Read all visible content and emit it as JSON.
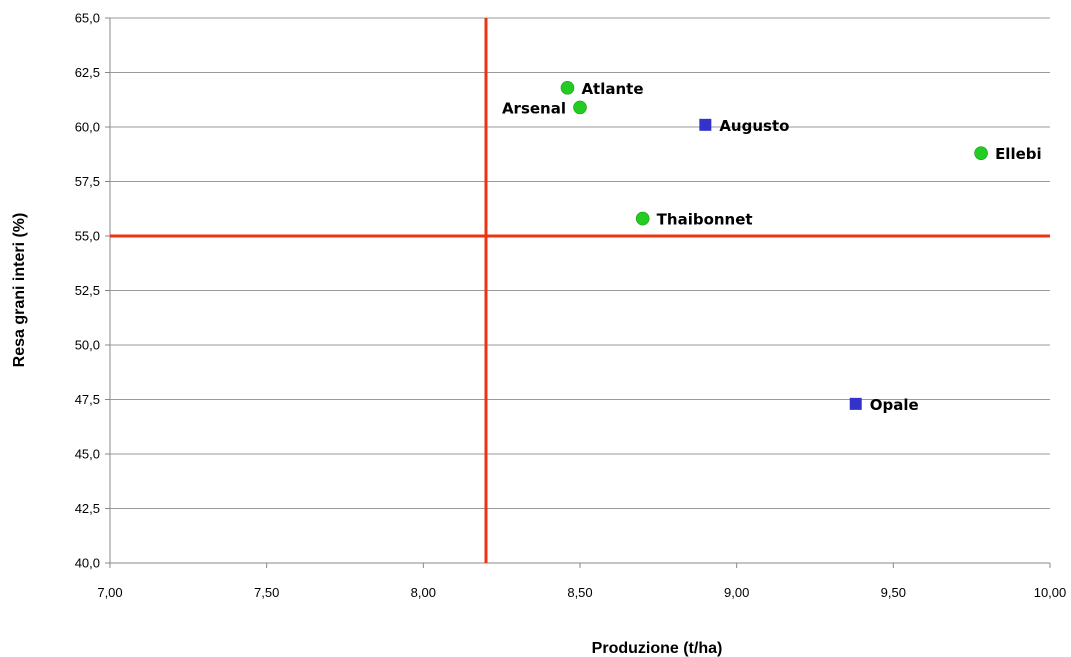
{
  "chart_data": {
    "type": "scatter",
    "title": "",
    "xlabel": "Produzione (t/ha)",
    "ylabel": "Resa grani interi (%)",
    "xlim": [
      7.0,
      10.0
    ],
    "ylim": [
      40.0,
      65.0
    ],
    "x_ticks": [
      "7,00",
      "7,50",
      "8,00",
      "8,50",
      "9,00",
      "9,50",
      "10,00"
    ],
    "y_ticks": [
      "40,0",
      "42,5",
      "45,0",
      "47,5",
      "50,0",
      "52,5",
      "55,0",
      "57,5",
      "60,0",
      "62,5",
      "65,0"
    ],
    "grid": "horizontal",
    "reference_lines": [
      {
        "axis": "x",
        "value": 8.2,
        "color": "#ee3311"
      },
      {
        "axis": "y",
        "value": 55.0,
        "color": "#ee3311"
      }
    ],
    "points": [
      {
        "label": "Atlante",
        "x": 8.46,
        "y": 61.8,
        "marker": "circle",
        "color": "#22cc22",
        "label_side": "right"
      },
      {
        "label": "Arsenal",
        "x": 8.5,
        "y": 60.9,
        "marker": "circle",
        "color": "#22cc22",
        "label_side": "left"
      },
      {
        "label": "Augusto",
        "x": 8.9,
        "y": 60.1,
        "marker": "square",
        "color": "#3333cc",
        "label_side": "right"
      },
      {
        "label": "Ellebi",
        "x": 9.78,
        "y": 58.8,
        "marker": "circle",
        "color": "#22cc22",
        "label_side": "right"
      },
      {
        "label": "Thaibonnet",
        "x": 8.7,
        "y": 55.8,
        "marker": "circle",
        "color": "#22cc22",
        "label_side": "right"
      },
      {
        "label": "Opale",
        "x": 9.38,
        "y": 47.3,
        "marker": "square",
        "color": "#3333cc",
        "label_side": "right"
      }
    ]
  }
}
